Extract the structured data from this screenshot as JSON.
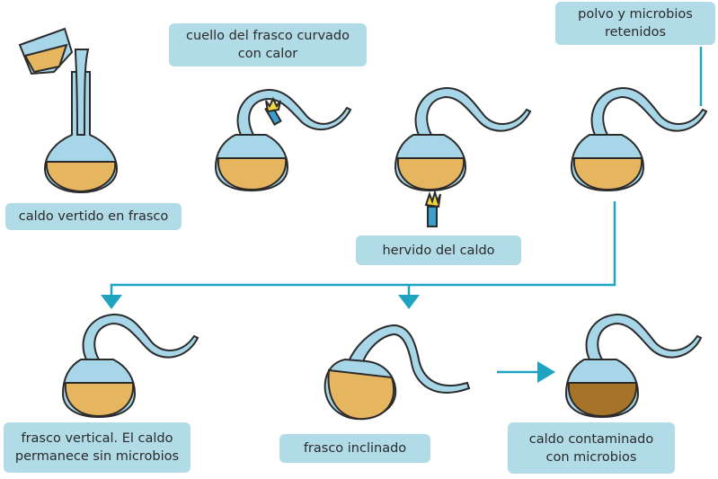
{
  "labels": {
    "poured": "caldo vertido en frasco",
    "curved_neck": "cuello del frasco curvado\ncon calor",
    "boiled": "hervido del caldo",
    "retained": "polvo y microbios\nretenidos",
    "upright": "frasco vertical. El caldo\npermanece sin microbios",
    "tilted": "frasco inclinado",
    "contaminated": "caldo contaminado\ncon microbios"
  },
  "colors": {
    "broth": "#e6b560",
    "broth_contaminated": "#a57428",
    "glass": "#a7d6e8",
    "outline": "#2b2b2b",
    "label_bg": "#b1dbe6",
    "connector": "#1ea3c0"
  }
}
